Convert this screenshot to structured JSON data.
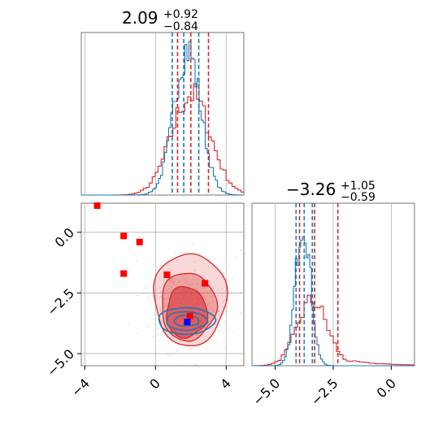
{
  "chart_data": {
    "type": "corner",
    "colors": {
      "primary": "#1f77b4",
      "secondary": "#d62728",
      "points": "#ff0000",
      "truth": "#0000ff"
    },
    "grid": true,
    "panels": [
      {
        "id": "param1-hist",
        "type": "histogram",
        "title": {
          "value": "2.09",
          "upper": "+0.92",
          "lower": "−0.84"
        },
        "xlim": [
          -4.2,
          5.0
        ],
        "quantiles_blue": [
          0.95,
          1.6,
          2.45
        ],
        "quantiles_red": [
          1.25,
          2.0,
          3.0
        ],
        "blue_dist": {
          "mean": 1.8,
          "sd": 0.75,
          "peak": 0.9
        },
        "red_dist": {
          "mean": 2.0,
          "sd": 1.1,
          "peak": 0.62
        }
      },
      {
        "id": "param2-hist",
        "type": "histogram",
        "title": {
          "value": "−3.26",
          "upper": "+1.05",
          "lower": "−0.59"
        },
        "xlim": [
          -6.0,
          1.0
        ],
        "xticks": [
          "−5.0",
          "−2.5",
          "0.0"
        ],
        "xtick_values": [
          -5.0,
          -2.5,
          0.0
        ],
        "quantiles_blue": [
          -4.1,
          -3.75,
          -3.4
        ],
        "quantiles_red": [
          -3.95,
          -3.3,
          -2.3
        ],
        "blue_dist": {
          "mean": -3.8,
          "sd": 0.32,
          "peak": 0.9
        },
        "red_dist": {
          "mean": -3.4,
          "sd": 0.65,
          "peak": 0.4,
          "tail": true
        }
      },
      {
        "id": "joint-2d",
        "type": "contour",
        "xlim": [
          -4.2,
          5.0
        ],
        "ylim": [
          -5.5,
          1.2
        ],
        "xticks": [
          "−4",
          "0",
          "4"
        ],
        "xtick_values": [
          -4,
          0,
          4
        ],
        "yticks": [
          "0.0",
          "−2.5",
          "−5.0"
        ],
        "ytick_values": [
          0.0,
          -2.5,
          -5.0
        ],
        "points": [
          [
            -3.3,
            1.1
          ],
          [
            -1.8,
            -0.15
          ],
          [
            -0.9,
            -0.4
          ],
          [
            -1.8,
            -1.7
          ],
          [
            0.65,
            -1.75
          ],
          [
            2.8,
            -2.1
          ],
          [
            1.95,
            -3.45
          ]
        ],
        "truth": [
          1.8,
          -3.7
        ]
      }
    ]
  }
}
